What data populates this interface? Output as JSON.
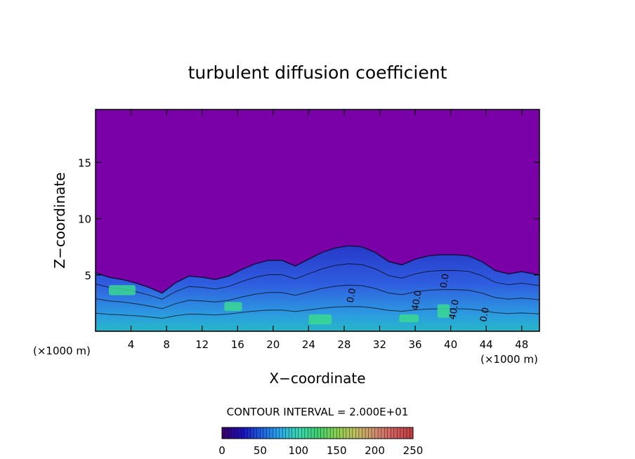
{
  "chart_data": {
    "type": "heatmap",
    "title": "turbulent diffusion coefficient",
    "xlabel": "X−coordinate",
    "ylabel": "Z−coordinate",
    "x_unit_left": "(×1000 m)",
    "x_unit_right": "(×1000 m)",
    "xlim": [
      0,
      50
    ],
    "ylim": [
      0,
      19.7
    ],
    "x_ticks": [
      4,
      8,
      12,
      16,
      20,
      24,
      28,
      32,
      36,
      40,
      44,
      48
    ],
    "y_ticks": [
      5,
      10,
      15
    ],
    "contour_interval_label": "CONTOUR INTERVAL = 2.000E+01",
    "contour_line_labels": [
      "0.0",
      "40.0",
      "0.0",
      "40.0",
      "0.0"
    ],
    "background_color": "#7a00a8",
    "colorbar": {
      "range": [
        0,
        250
      ],
      "ticks": [
        0,
        50,
        100,
        150,
        200,
        250
      ],
      "colors": [
        "#3a0070",
        "#1a10b8",
        "#1f5fe0",
        "#2aa8e8",
        "#3ad8b0",
        "#40d070",
        "#88d050",
        "#c0c060",
        "#d09070",
        "#d06060",
        "#c04040"
      ]
    },
    "boundary_layer_top": [
      [
        0,
        5.2
      ],
      [
        1.5,
        4.8
      ],
      [
        3,
        4.6
      ],
      [
        4.5,
        4.3
      ],
      [
        6,
        3.9
      ],
      [
        7.5,
        3.4
      ],
      [
        9,
        4.3
      ],
      [
        10.5,
        4.9
      ],
      [
        12,
        4.8
      ],
      [
        13.5,
        4.6
      ],
      [
        15,
        4.9
      ],
      [
        16.5,
        5.5
      ],
      [
        18,
        6.0
      ],
      [
        19.5,
        6.3
      ],
      [
        21,
        6.3
      ],
      [
        22.5,
        5.8
      ],
      [
        24,
        6.4
      ],
      [
        25.5,
        7.0
      ],
      [
        27,
        7.4
      ],
      [
        28.5,
        7.6
      ],
      [
        30,
        7.5
      ],
      [
        31.5,
        7.0
      ],
      [
        33,
        6.2
      ],
      [
        34.5,
        5.9
      ],
      [
        36,
        6.4
      ],
      [
        37.5,
        6.7
      ],
      [
        39,
        6.8
      ],
      [
        40.5,
        6.8
      ],
      [
        42,
        6.7
      ],
      [
        43.5,
        6.2
      ],
      [
        45,
        5.4
      ],
      [
        46.5,
        5.1
      ],
      [
        48,
        5.3
      ],
      [
        50,
        5.0
      ]
    ],
    "high_value_zones": [
      {
        "x": 1.5,
        "z": 3.2,
        "w": 3.0,
        "h": 0.9
      },
      {
        "x": 14.5,
        "z": 1.8,
        "w": 2.0,
        "h": 0.8
      },
      {
        "x": 24.0,
        "z": 0.6,
        "w": 2.6,
        "h": 0.9
      },
      {
        "x": 34.2,
        "z": 0.8,
        "w": 2.2,
        "h": 0.7
      },
      {
        "x": 38.5,
        "z": 1.2,
        "w": 1.4,
        "h": 1.2
      }
    ]
  }
}
